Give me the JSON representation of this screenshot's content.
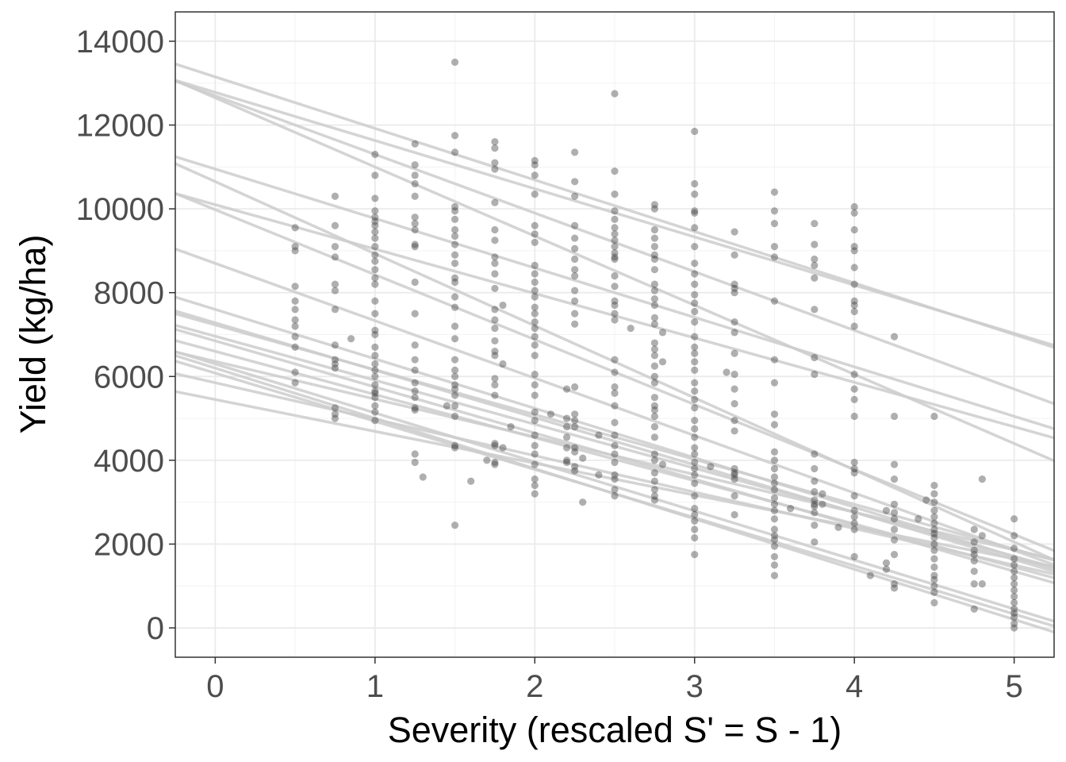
{
  "chart_data": {
    "type": "scatter",
    "title": "",
    "xlabel": "Severity (rescaled S' = S - 1)",
    "ylabel": "Yield (kg/ha)",
    "xlim": [
      -0.25,
      5.25
    ],
    "ylim": [
      -700,
      14700
    ],
    "x_ticks": [
      0,
      1,
      2,
      3,
      4,
      5
    ],
    "y_ticks": [
      0,
      2000,
      4000,
      6000,
      8000,
      10000,
      12000,
      14000
    ],
    "x_tick_labels": [
      "0",
      "1",
      "2",
      "3",
      "4",
      "5"
    ],
    "y_tick_labels": [
      "0",
      "2000",
      "4000",
      "6000",
      "8000",
      "10000",
      "12000",
      "14000"
    ],
    "grid": true,
    "point_color": "#404040",
    "line_color": "#cccccc",
    "regression_lines": [
      {
        "intercept": 13150,
        "slope": -1230
      },
      {
        "intercept": 12780,
        "slope": -1150
      },
      {
        "intercept": 12700,
        "slope": -1400
      },
      {
        "intercept": 12650,
        "slope": -1650
      },
      {
        "intercept": 10950,
        "slope": -1180
      },
      {
        "intercept": 10650,
        "slope": -1720
      },
      {
        "intercept": 10100,
        "slope": -1060
      },
      {
        "intercept": 9980,
        "slope": -1550
      },
      {
        "intercept": 8700,
        "slope": -1370
      },
      {
        "intercept": 7600,
        "slope": -1180
      },
      {
        "intercept": 7280,
        "slope": -1130
      },
      {
        "intercept": 7230,
        "slope": -1070
      },
      {
        "intercept": 6960,
        "slope": -1050
      },
      {
        "intercept": 6850,
        "slope": -1100
      },
      {
        "intercept": 6600,
        "slope": -1030
      },
      {
        "intercept": 6360,
        "slope": -900
      },
      {
        "intercept": 6300,
        "slope": -1170
      },
      {
        "intercept": 6200,
        "slope": -1200
      },
      {
        "intercept": 6080,
        "slope": -1150
      },
      {
        "intercept": 5850,
        "slope": -870
      },
      {
        "intercept": 5450,
        "slope": -760
      }
    ],
    "x_groups": [
      {
        "x": 0.5,
        "y": [
          9550,
          9100,
          9000,
          8150,
          7800,
          7600,
          7350,
          7200,
          6950,
          6700,
          6100,
          5850
        ]
      },
      {
        "x": 0.75,
        "y": [
          10300,
          9600,
          9100,
          8850,
          8200,
          8050,
          7600,
          6750,
          6400,
          6300,
          6200,
          5250,
          5100,
          5000
        ]
      },
      {
        "x": 0.85,
        "y": [
          6900
        ]
      },
      {
        "x": 1.0,
        "y": [
          11300,
          10800,
          10250,
          9950,
          9800,
          9700,
          9600,
          9450,
          9300,
          9100,
          8900,
          8750,
          8550,
          8350,
          8200,
          7800,
          7500,
          7100,
          7000,
          6700,
          6500,
          6300,
          6150,
          6000,
          5800,
          5650,
          5600,
          5500,
          5300,
          5150,
          4950
        ]
      },
      {
        "x": 1.25,
        "y": [
          11550,
          11050,
          10800,
          10600,
          10300,
          9800,
          9650,
          9500,
          9150,
          9100,
          8250,
          7500,
          6750,
          6400,
          6150,
          5850,
          5650,
          5500,
          5250,
          5200,
          4150,
          3950
        ]
      },
      {
        "x": 1.3,
        "y": [
          3600
        ]
      },
      {
        "x": 1.45,
        "y": [
          5300
        ]
      },
      {
        "x": 1.5,
        "y": [
          13500,
          11750,
          11350,
          10050,
          9950,
          9750,
          9500,
          9350,
          9150,
          8900,
          8700,
          8350,
          8250,
          7900,
          7650,
          7200,
          6900,
          6400,
          6150,
          6000,
          5800,
          5700,
          5550,
          5300,
          5050,
          4350,
          4300,
          2450
        ]
      },
      {
        "x": 1.6,
        "y": [
          3500
        ]
      },
      {
        "x": 1.7,
        "y": [
          4000
        ]
      },
      {
        "x": 1.75,
        "y": [
          11600,
          11450,
          11100,
          10950,
          10150,
          9500,
          9250,
          8850,
          8700,
          8450,
          8100,
          7600,
          7350,
          7150,
          6850,
          6600,
          6500,
          5950,
          5800,
          5550,
          4400,
          4350,
          3950,
          3900
        ]
      },
      {
        "x": 1.8,
        "y": [
          6300,
          7700,
          4300
        ]
      },
      {
        "x": 1.85,
        "y": [
          4800
        ]
      },
      {
        "x": 2.0,
        "y": [
          11150,
          11050,
          10800,
          10350,
          9600,
          9400,
          9200,
          8650,
          8450,
          8250,
          8050,
          7900,
          7650,
          7500,
          7300,
          7150,
          6950,
          6750,
          6500,
          6050,
          5800,
          5550,
          5150,
          4950,
          4600,
          4350,
          4150,
          3900,
          3550,
          3400,
          3200
        ]
      },
      {
        "x": 2.1,
        "y": [
          5100
        ]
      },
      {
        "x": 2.2,
        "y": [
          5700,
          5000,
          4800,
          4550,
          4300,
          4000,
          3950
        ]
      },
      {
        "x": 2.25,
        "y": [
          11350,
          10650,
          10300,
          9600,
          9300,
          9050,
          8800,
          8550,
          8400,
          8050,
          7800,
          7500,
          7250,
          5750,
          5100,
          4950,
          4800,
          4300,
          4200,
          3850,
          3750
        ]
      },
      {
        "x": 2.3,
        "y": [
          3000,
          4050
        ]
      },
      {
        "x": 2.4,
        "y": [
          4600,
          3650
        ]
      },
      {
        "x": 2.5,
        "y": [
          12750,
          10900,
          10350,
          9950,
          9750,
          9550,
          9400,
          9250,
          9100,
          8950,
          8850,
          8800,
          8400,
          8150,
          7800,
          7700,
          7500,
          7350,
          6400,
          6100,
          5750,
          5600,
          5300,
          4900,
          4600,
          4350,
          4150,
          3950,
          3650,
          3550,
          3300,
          3150
        ]
      },
      {
        "x": 2.6,
        "y": [
          7150
        ]
      },
      {
        "x": 2.75,
        "y": [
          10100,
          10000,
          9500,
          9300,
          9100,
          8900,
          8800,
          8550,
          8200,
          8050,
          7850,
          7700,
          7400,
          7250,
          6800,
          6650,
          6500,
          6250,
          6000,
          5850,
          5500,
          5300,
          5200,
          5050,
          4800,
          4550,
          4150,
          4000,
          3700,
          3500,
          3300,
          3150,
          3050
        ]
      },
      {
        "x": 2.8,
        "y": [
          7050,
          6350,
          3900
        ]
      },
      {
        "x": 3.0,
        "y": [
          11850,
          10600,
          10350,
          9950,
          9900,
          9550,
          9100,
          8700,
          8450,
          8200,
          7950,
          7750,
          7550,
          7300,
          6950,
          6700,
          6550,
          6350,
          6150,
          5850,
          5650,
          5450,
          5250,
          4950,
          4750,
          4550,
          4300,
          4150,
          3950,
          3800,
          3650,
          3450,
          3150,
          2850,
          2700,
          2550,
          2350,
          2150,
          1750
        ]
      },
      {
        "x": 3.1,
        "y": [
          3850
        ]
      },
      {
        "x": 3.2,
        "y": [
          6100
        ]
      },
      {
        "x": 3.25,
        "y": [
          9450,
          8900,
          8200,
          8100,
          8000,
          7300,
          7050,
          6550,
          6050,
          5700,
          5350,
          4950,
          4700,
          3800,
          3700,
          3650,
          3550,
          3150,
          2700
        ]
      },
      {
        "x": 3.5,
        "y": [
          10400,
          9950,
          9650,
          9100,
          8850,
          7800,
          6400,
          5850,
          5100,
          4850,
          4200,
          4000,
          3800,
          3600,
          3450,
          3300,
          3100,
          2950,
          2800,
          2600,
          2350,
          2200,
          2100,
          1950,
          1700,
          1500,
          1250
        ]
      },
      {
        "x": 3.6,
        "y": [
          2850
        ]
      },
      {
        "x": 3.75,
        "y": [
          9650,
          9150,
          8800,
          8650,
          8350,
          7600,
          6450,
          6050,
          4150,
          3800,
          3500,
          3250,
          3050,
          2950,
          2900,
          2750,
          2450,
          2050
        ]
      },
      {
        "x": 3.8,
        "y": [
          3200,
          2950
        ]
      },
      {
        "x": 3.9,
        "y": [
          2400
        ]
      },
      {
        "x": 4.0,
        "y": [
          10050,
          9900,
          9500,
          9100,
          9000,
          8600,
          8200,
          7800,
          7700,
          7550,
          7200,
          6050,
          5700,
          5450,
          5050,
          3950,
          3800,
          3700,
          3150,
          2800,
          2650,
          2500,
          2350,
          1700
        ]
      },
      {
        "x": 4.1,
        "y": [
          1250
        ]
      },
      {
        "x": 4.2,
        "y": [
          2800,
          1550,
          1400
        ]
      },
      {
        "x": 4.25,
        "y": [
          6950,
          5050,
          3900,
          3550,
          2950,
          2750,
          2600,
          2350,
          2100,
          1750,
          1050,
          950
        ]
      },
      {
        "x": 4.4,
        "y": [
          2600
        ]
      },
      {
        "x": 4.45,
        "y": [
          3050
        ]
      },
      {
        "x": 4.5,
        "y": [
          5050,
          3400,
          3200,
          3000,
          2800,
          2650,
          2500,
          2350,
          2250,
          2150,
          2000,
          1850,
          1650,
          1450,
          1250,
          1150,
          1000,
          850,
          600
        ]
      },
      {
        "x": 4.75,
        "y": [
          2350,
          2050,
          1850,
          1750,
          1600,
          1350,
          1050,
          450
        ]
      },
      {
        "x": 4.8,
        "y": [
          3550,
          2200,
          1050
        ]
      },
      {
        "x": 5.0,
        "y": [
          2600,
          2200,
          1900,
          1650,
          1500,
          1350,
          1200,
          1050,
          900,
          750,
          600,
          450,
          350,
          250,
          100,
          0
        ]
      }
    ]
  }
}
